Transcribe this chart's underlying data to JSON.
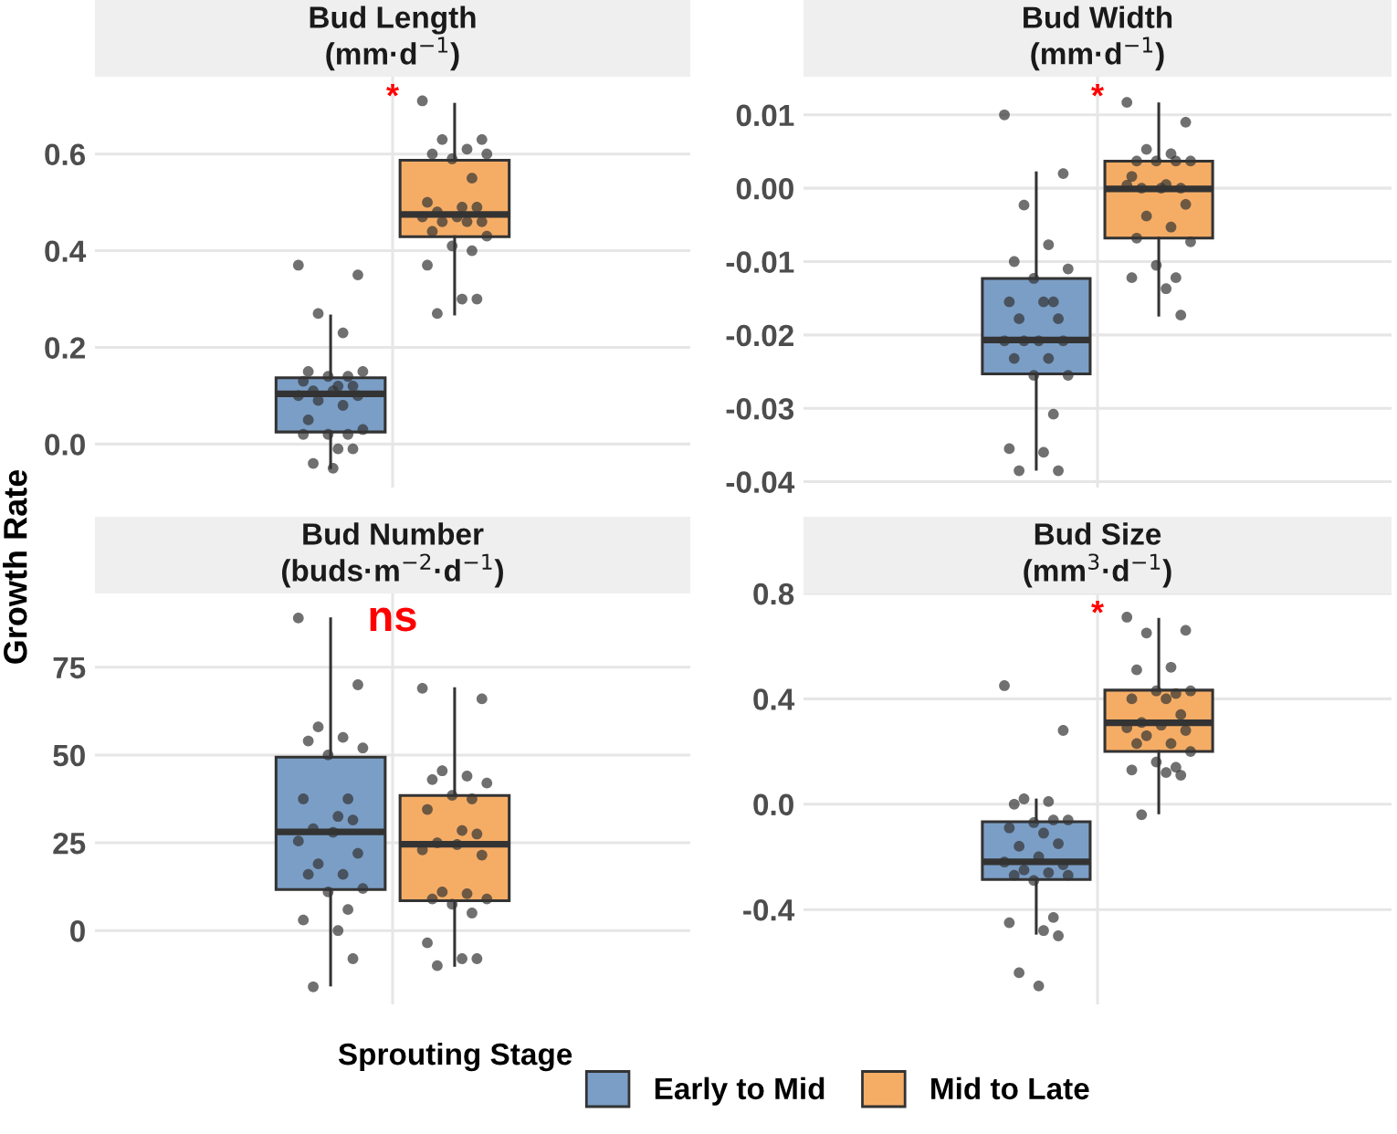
{
  "chart_data": [
    {
      "type": "box",
      "title": "Bud Length\n(mm·d$^{−1}$)",
      "ylabel": "Growth Rate",
      "legend_title": "Sprouting Stage",
      "legend": "bottom",
      "categories": [
        null
      ],
      "tick_labels": "y",
      "grid": true,
      "annotations": [
        "*"
      ],
      "ylim": [
        -0.09,
        0.76
      ],
      "yticks": [
        {
          "value": 0,
          "label": "0.0"
        },
        {
          "value": 0.2,
          "label": "0.2"
        },
        {
          "value": 0.4,
          "label": "0.4"
        },
        {
          "value": 0.6,
          "label": "0.6"
        }
      ],
      "series": [
        {
          "name": "Early to Mid",
          "color": "#7b9ec6",
          "boxes": [
            {
              "low": -0.049,
              "q1": 0.025,
              "median": 0.104,
              "q3": 0.137,
              "high": 0.265
            }
          ]
        },
        {
          "name": "Mid to Late",
          "color": "#f5ad66",
          "boxes": [
            {
              "low": 0.269,
              "q1": 0.429,
              "median": 0.475,
              "q3": 0.587,
              "high": 0.703
            }
          ]
        },
        {
          "type": "scatter",
          "color": "#333333",
          "x": [
            null,
            null,
            null,
            null,
            null,
            null,
            null,
            null,
            null,
            null,
            null,
            null,
            null,
            null,
            null,
            null,
            null,
            null,
            null,
            null,
            null,
            null,
            null,
            null,
            null,
            null
          ],
          "values": [
            0.37,
            0.35,
            0.27,
            0.23,
            0.15,
            0.15,
            0.14,
            0.14,
            0.13,
            0.12,
            0.12,
            0.11,
            0.11,
            0.1,
            0.1,
            0.09,
            0.08,
            0.05,
            0.03,
            0.02,
            0.02,
            0.02,
            -0.01,
            -0.01,
            -0.04,
            -0.05
          ]
        },
        {
          "type": "scatter",
          "color": "#333333",
          "x": [
            null,
            null,
            null,
            null,
            null,
            null,
            null,
            null,
            null,
            null,
            null,
            null,
            null,
            null,
            null,
            null,
            null,
            null,
            null,
            null,
            null,
            null,
            null,
            null,
            null
          ],
          "values": [
            0.71,
            0.63,
            0.63,
            0.61,
            0.6,
            0.6,
            0.59,
            0.55,
            0.5,
            0.49,
            0.49,
            0.48,
            0.47,
            0.47,
            0.46,
            0.46,
            0.46,
            0.44,
            0.43,
            0.41,
            0.4,
            0.37,
            0.3,
            0.3,
            0.27
          ]
        }
      ]
    },
    {
      "type": "box",
      "title": "Bud Width\n(mm·d$^{−1}$)",
      "categories": [
        null
      ],
      "tick_labels": "y",
      "grid": true,
      "annotations": [
        "*"
      ],
      "ylim": [
        -0.0408,
        0.0152
      ],
      "yticks": [
        {
          "value": -0.04,
          "label": "-0.04"
        },
        {
          "value": -0.03,
          "label": "-0.03"
        },
        {
          "value": -0.02,
          "label": "-0.02"
        },
        {
          "value": -0.01,
          "label": "-0.01"
        },
        {
          "value": 0,
          "label": "0.00"
        },
        {
          "value": 0.01,
          "label": "0.01"
        }
      ],
      "series": [
        {
          "name": "Early to Mid",
          "color": "#7b9ec6",
          "boxes": [
            {
              "low": -0.0383,
              "q1": -0.0253,
              "median": -0.0207,
              "q3": -0.0123,
              "high": 0.0021
            }
          ]
        },
        {
          "name": "Mid to Late",
          "color": "#f5ad66",
          "boxes": [
            {
              "low": -0.0173,
              "q1": -0.0068,
              "median": -0.0001,
              "q3": 0.0037,
              "high": 0.0115
            }
          ]
        },
        {
          "type": "scatter",
          "color": "#333333",
          "x": [
            null,
            null,
            null,
            null,
            null,
            null,
            null,
            null,
            null,
            null,
            null,
            null,
            null,
            null,
            null,
            null,
            null,
            null,
            null,
            null,
            null,
            null,
            null,
            null,
            null
          ],
          "values": [
            0.01,
            0.002,
            -0.0023,
            -0.0077,
            -0.01,
            -0.011,
            -0.0123,
            -0.0155,
            -0.0155,
            -0.0155,
            -0.0178,
            -0.0178,
            -0.0208,
            -0.0208,
            -0.0208,
            -0.0208,
            -0.0232,
            -0.0232,
            -0.0255,
            -0.0255,
            -0.0308,
            -0.0355,
            -0.036,
            -0.0385,
            -0.0385
          ]
        },
        {
          "type": "scatter",
          "color": "#333333",
          "x": [
            null,
            null,
            null,
            null,
            null,
            null,
            null,
            null,
            null,
            null,
            null,
            null,
            null,
            null,
            null,
            null,
            null,
            null,
            null,
            null,
            null,
            null,
            null,
            null
          ],
          "values": [
            0.0117,
            0.009,
            0.0053,
            0.0047,
            0.0037,
            0.0037,
            0.0037,
            0.0037,
            0.0016,
            0.0005,
            0.0,
            0.0,
            0.0,
            0.0004,
            -0.0022,
            -0.0038,
            -0.0053,
            -0.0068,
            -0.0073,
            -0.0105,
            -0.0122,
            -0.0122,
            -0.0137,
            -0.0173
          ]
        }
      ]
    },
    {
      "type": "box",
      "title": "Bud Number\n(buds·m$^{−2}$·d$^{−1}$)",
      "categories": [
        null
      ],
      "tick_labels": "y",
      "grid": true,
      "annotations": [
        "ns"
      ],
      "ylim": [
        -21,
        96
      ],
      "yticks": [
        0,
        25,
        50,
        75
      ],
      "series": [
        {
          "name": "Early to Mid",
          "color": "#7b9ec6",
          "boxes": [
            {
              "low": -15.5,
              "q1": 11.7,
              "median": 28.1,
              "q3": 49.4,
              "high": 88.8
            }
          ]
        },
        {
          "name": "Mid to Late",
          "color": "#f5ad66",
          "boxes": [
            {
              "low": -9.9,
              "q1": 8.5,
              "median": 24.6,
              "q3": 38.5,
              "high": 68.9
            }
          ]
        },
        {
          "type": "scatter",
          "color": "#333333",
          "x": [
            null,
            null,
            null,
            null,
            null,
            null,
            null,
            null,
            null,
            null,
            null,
            null,
            null,
            null,
            null,
            null,
            null,
            null,
            null,
            null,
            null,
            null,
            null,
            null,
            null
          ],
          "values": [
            89,
            70,
            58,
            55,
            54,
            52,
            50,
            37.5,
            37.5,
            32.5,
            31.5,
            29,
            28,
            25.5,
            22,
            19,
            16,
            16,
            12,
            11,
            6,
            3,
            0,
            -8,
            -16
          ]
        },
        {
          "type": "scatter",
          "color": "#333333",
          "x": [
            null,
            null,
            null,
            null,
            null,
            null,
            null,
            null,
            null,
            null,
            null,
            null,
            null,
            null,
            null,
            null,
            null,
            null,
            null,
            null,
            null,
            null,
            null,
            null,
            null
          ],
          "values": [
            69,
            66,
            45.5,
            44,
            43,
            42,
            38.5,
            37.5,
            34.5,
            28.5,
            27.5,
            25,
            24.5,
            23,
            21.5,
            11,
            10.5,
            9,
            9,
            7.5,
            5,
            -3.5,
            -8,
            -8,
            -10
          ]
        }
      ]
    },
    {
      "type": "box",
      "title": "Bud Size\n(mm$^{3}$·d$^{−1}$)",
      "categories": [
        null
      ],
      "tick_labels": "y",
      "grid": true,
      "annotations": [
        "*"
      ],
      "ylim": [
        -0.76,
        0.8
      ],
      "yticks": [
        {
          "value": -0.4,
          "label": "-0.4"
        },
        {
          "value": 0,
          "label": "0.0"
        },
        {
          "value": 0.4,
          "label": "0.4"
        },
        {
          "value": 0.8,
          "label": "0.8"
        }
      ],
      "series": [
        {
          "name": "Early to Mid",
          "color": "#7b9ec6",
          "boxes": [
            {
              "low": -0.49,
              "q1": -0.286,
              "median": -0.219,
              "q3": -0.067,
              "high": 0.016
            }
          ]
        },
        {
          "name": "Mid to Late",
          "color": "#f5ad66",
          "boxes": [
            {
              "low": -0.033,
              "q1": 0.2,
              "median": 0.309,
              "q3": 0.433,
              "high": 0.702
            }
          ]
        },
        {
          "type": "scatter",
          "color": "#333333",
          "x": [
            null,
            null,
            null,
            null,
            null,
            null,
            null,
            null,
            null,
            null,
            null,
            null,
            null,
            null,
            null,
            null,
            null,
            null,
            null,
            null,
            null,
            null,
            null,
            null,
            null,
            null
          ],
          "values": [
            0.45,
            0.28,
            0.02,
            0.01,
            0.0,
            -0.06,
            -0.07,
            -0.06,
            -0.09,
            -0.11,
            -0.15,
            -0.16,
            -0.2,
            -0.22,
            -0.23,
            -0.25,
            -0.26,
            -0.27,
            -0.27,
            -0.29,
            -0.43,
            -0.45,
            -0.48,
            -0.5,
            -0.64,
            -0.69
          ]
        },
        {
          "type": "scatter",
          "color": "#333333",
          "x": [
            null,
            null,
            null,
            null,
            null,
            null,
            null,
            null,
            null,
            null,
            null,
            null,
            null,
            null,
            null,
            null,
            null,
            null,
            null,
            null,
            null,
            null,
            null,
            null,
            null
          ],
          "values": [
            0.71,
            0.66,
            0.65,
            0.52,
            0.51,
            0.43,
            0.43,
            0.42,
            0.4,
            0.4,
            0.34,
            0.31,
            0.3,
            0.29,
            0.28,
            0.26,
            0.23,
            0.23,
            0.2,
            0.16,
            0.14,
            0.13,
            0.12,
            0.11,
            -0.04
          ]
        }
      ]
    }
  ]
}
